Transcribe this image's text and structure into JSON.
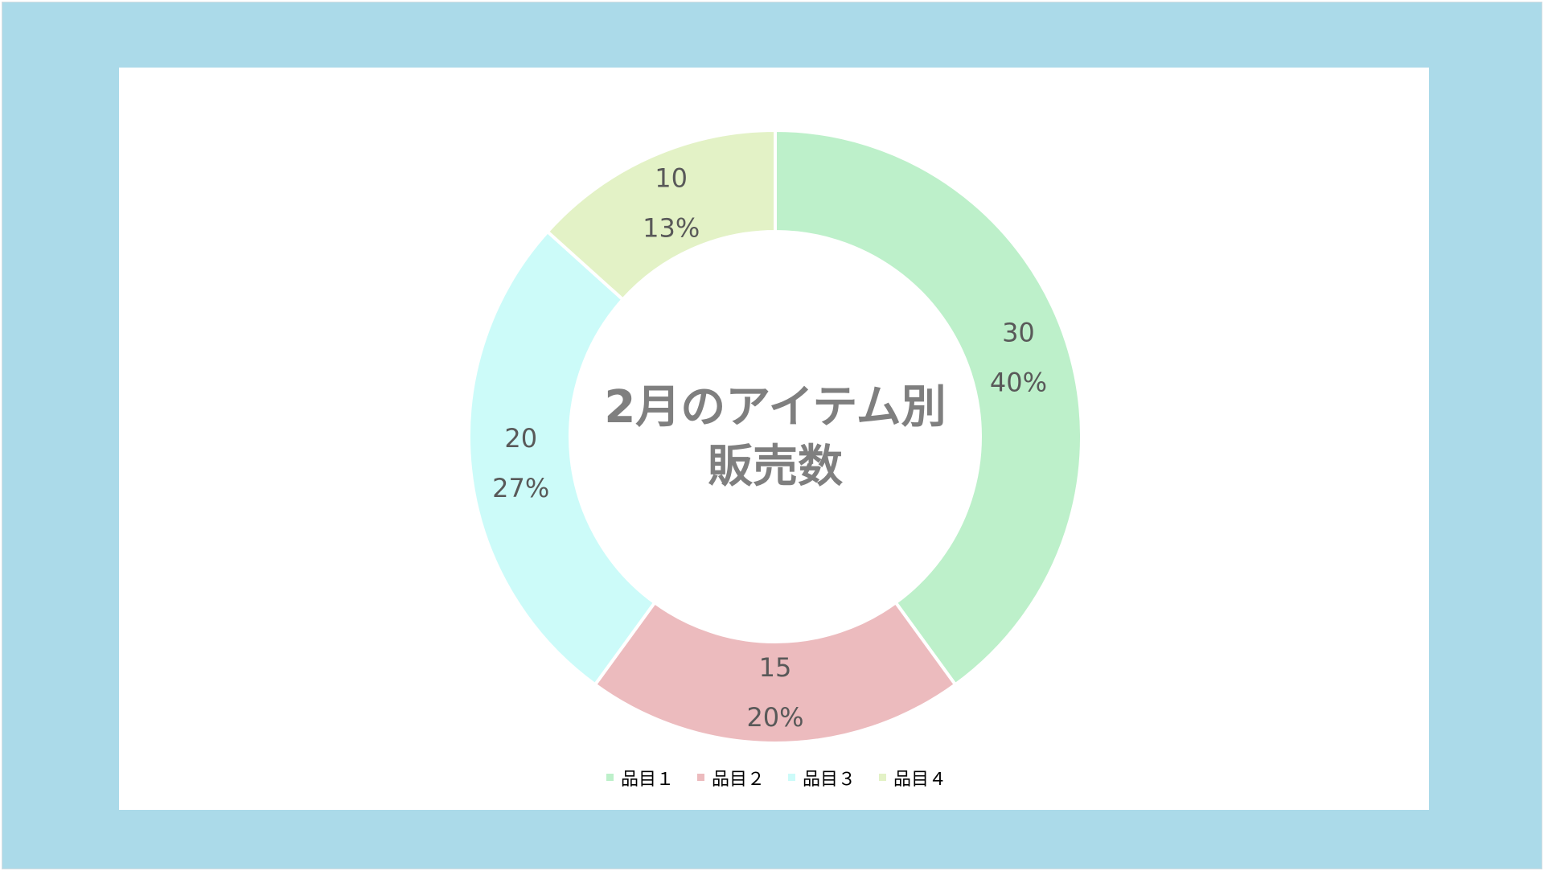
{
  "chart_data": {
    "type": "pie",
    "variant": "donut",
    "title": "2月のアイテム別\n販売数",
    "categories": [
      "品目１",
      "品目２",
      "品目３",
      "品目４"
    ],
    "values": [
      30,
      15,
      20,
      10
    ],
    "percentages": [
      "40%",
      "20%",
      "27%",
      "13%"
    ],
    "colors": [
      "#bdf0ca",
      "#ecbbbe",
      "#ccfbf9",
      "#e3f2c6"
    ],
    "legend": "bottom"
  }
}
